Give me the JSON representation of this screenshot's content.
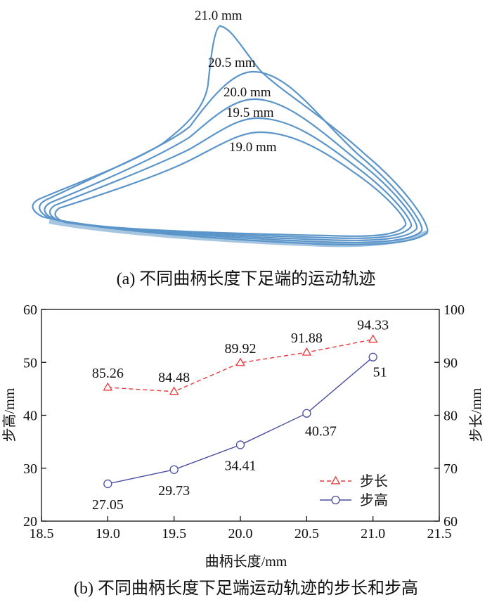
{
  "panel_a": {
    "caption": "(a)  不同曲柄长度下足端的运动轨迹",
    "curve_labels": [
      "21.0 mm",
      "20.5 mm",
      "20.0 mm",
      "19.5 mm",
      "19.0 mm"
    ],
    "curve_color": "#5b95c9"
  },
  "panel_b": {
    "caption": "(b)  不同曲柄长度下足端运动轨迹的步长和步高"
  },
  "chart_data": {
    "type": "line",
    "xlabel": "曲柄长度/mm",
    "ylabel_left": "步高/mm",
    "ylabel_right": "步长/mm",
    "xlim": [
      18.5,
      21.5
    ],
    "ylim_left": [
      20,
      60
    ],
    "ylim_right": [
      60,
      100
    ],
    "x_ticks": [
      "18.5",
      "19.0",
      "19.5",
      "20.0",
      "20.5",
      "21.0",
      "21.5"
    ],
    "y_left_ticks": [
      "20",
      "30",
      "40",
      "50",
      "60"
    ],
    "y_right_ticks": [
      "60",
      "70",
      "80",
      "90",
      "100"
    ],
    "x": [
      19.0,
      19.5,
      20.0,
      20.5,
      21.0
    ],
    "legend_position": "bottom-right",
    "series": [
      {
        "name": "步长",
        "axis": "right",
        "values": [
          85.26,
          84.48,
          89.92,
          91.88,
          94.33
        ],
        "labels": [
          "85.26",
          "84.48",
          "89.92",
          "91.88",
          "94.33"
        ],
        "color": "#e8393a",
        "line_style": "dashed",
        "marker": "triangle"
      },
      {
        "name": "步高",
        "axis": "left",
        "values": [
          27.05,
          29.73,
          34.41,
          40.37,
          51
        ],
        "labels": [
          "27.05",
          "29.73",
          "34.41",
          "40.37",
          "51"
        ],
        "color": "#4b4da0",
        "line_style": "solid",
        "marker": "circle"
      }
    ]
  }
}
